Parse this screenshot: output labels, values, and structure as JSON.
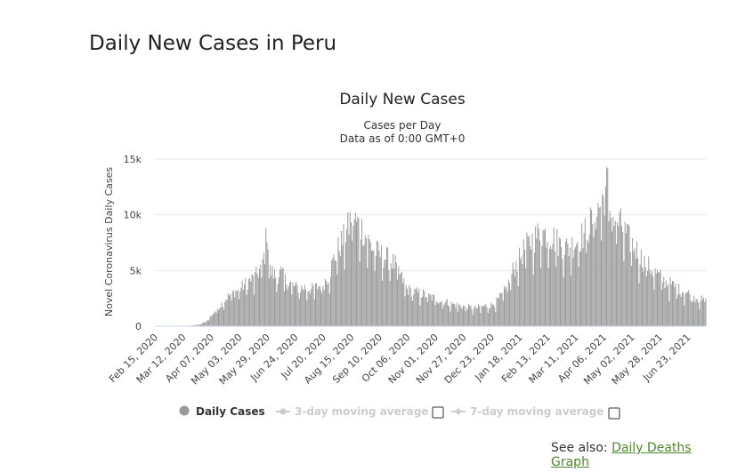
{
  "page": {
    "title": "Daily New Cases in Peru"
  },
  "see_also": {
    "prefix": "See also:",
    "link_label": "Daily Deaths Graph"
  },
  "legend": {
    "items": [
      {
        "label": "Daily Cases",
        "active": true,
        "color": "#999999"
      },
      {
        "label": "3-day moving average",
        "active": false,
        "color": "#cccccc"
      },
      {
        "label": "7-day moving average",
        "active": false,
        "color": "#cccccc"
      }
    ]
  },
  "chart_data": {
    "type": "bar",
    "title": "Daily New Cases",
    "subtitle_lines": [
      "Cases per Day",
      "Data as of 0:00 GMT+0"
    ],
    "ylabel": "Novel Coronavirus Daily Cases",
    "xlabel": "",
    "ylim": [
      0,
      15000
    ],
    "yticks": [
      {
        "value": 0,
        "label": "0"
      },
      {
        "value": 5000,
        "label": "5k"
      },
      {
        "value": 10000,
        "label": "10k"
      },
      {
        "value": 15000,
        "label": "15k"
      }
    ],
    "x_start": "2020-02-15",
    "x_end": "2021-07-10",
    "xticks": [
      "Feb 15, 2020",
      "Mar 12, 2020",
      "Apr 07, 2020",
      "May 03, 2020",
      "May 29, 2020",
      "Jun 24, 2020",
      "Jul 20, 2020",
      "Aug 15, 2020",
      "Sep 10, 2020",
      "Oct 06, 2020",
      "Nov 01, 2020",
      "Nov 27, 2020",
      "Dec 23, 2020",
      "Jan 18, 2021",
      "Feb 13, 2021",
      "Mar 11, 2021",
      "Apr 06, 2021",
      "May 02, 2021",
      "May 28, 2021",
      "Jun 23, 2021"
    ],
    "grid": true,
    "legend_position": "bottom",
    "series": [
      {
        "name": "Daily Cases",
        "color": "#999999",
        "points": [
          [
            "2020-02-15",
            0
          ],
          [
            "2020-03-06",
            0
          ],
          [
            "2020-03-12",
            20
          ],
          [
            "2020-03-20",
            60
          ],
          [
            "2020-03-28",
            150
          ],
          [
            "2020-04-02",
            400
          ],
          [
            "2020-04-07",
            900
          ],
          [
            "2020-04-12",
            1500
          ],
          [
            "2020-04-17",
            2000
          ],
          [
            "2020-04-22",
            2600
          ],
          [
            "2020-04-27",
            3000
          ],
          [
            "2020-05-03",
            3300
          ],
          [
            "2020-05-08",
            3700
          ],
          [
            "2020-05-13",
            4100
          ],
          [
            "2020-05-18",
            4400
          ],
          [
            "2020-05-23",
            5200
          ],
          [
            "2020-05-27",
            6500
          ],
          [
            "2020-05-29",
            8800
          ],
          [
            "2020-06-01",
            5000
          ],
          [
            "2020-06-06",
            4500
          ],
          [
            "2020-06-11",
            4800
          ],
          [
            "2020-06-16",
            4000
          ],
          [
            "2020-06-21",
            3800
          ],
          [
            "2020-06-24",
            3500
          ],
          [
            "2020-06-29",
            3400
          ],
          [
            "2020-07-04",
            3500
          ],
          [
            "2020-07-09",
            3300
          ],
          [
            "2020-07-14",
            3500
          ],
          [
            "2020-07-20",
            3800
          ],
          [
            "2020-07-25",
            4500
          ],
          [
            "2020-07-30",
            6000
          ],
          [
            "2020-08-04",
            7200
          ],
          [
            "2020-08-09",
            8000
          ],
          [
            "2020-08-13",
            9000
          ],
          [
            "2020-08-15",
            10000
          ],
          [
            "2020-08-20",
            9300
          ],
          [
            "2020-08-25",
            8800
          ],
          [
            "2020-08-30",
            7800
          ],
          [
            "2020-09-04",
            7000
          ],
          [
            "2020-09-10",
            6500
          ],
          [
            "2020-09-15",
            6200
          ],
          [
            "2020-09-20",
            6000
          ],
          [
            "2020-09-25",
            5500
          ],
          [
            "2020-09-30",
            4500
          ],
          [
            "2020-10-06",
            3300
          ],
          [
            "2020-10-11",
            3100
          ],
          [
            "2020-10-16",
            3000
          ],
          [
            "2020-10-21",
            2900
          ],
          [
            "2020-10-26",
            2700
          ],
          [
            "2020-11-01",
            2500
          ],
          [
            "2020-11-06",
            2300
          ],
          [
            "2020-11-11",
            2200
          ],
          [
            "2020-11-16",
            2000
          ],
          [
            "2020-11-21",
            1900
          ],
          [
            "2020-11-27",
            1800
          ],
          [
            "2020-12-02",
            1700
          ],
          [
            "2020-12-07",
            1600
          ],
          [
            "2020-12-12",
            1700
          ],
          [
            "2020-12-17",
            1800
          ],
          [
            "2020-12-23",
            1900
          ],
          [
            "2020-12-28",
            2200
          ],
          [
            "2021-01-02",
            2800
          ],
          [
            "2021-01-07",
            3500
          ],
          [
            "2021-01-12",
            5000
          ],
          [
            "2021-01-18",
            6000
          ],
          [
            "2021-01-23",
            7000
          ],
          [
            "2021-01-28",
            7500
          ],
          [
            "2021-02-02",
            8000
          ],
          [
            "2021-02-07",
            8500
          ],
          [
            "2021-02-13",
            8200
          ],
          [
            "2021-02-18",
            8000
          ],
          [
            "2021-02-23",
            7500
          ],
          [
            "2021-02-28",
            7200
          ],
          [
            "2021-03-05",
            7000
          ],
          [
            "2021-03-11",
            7600
          ],
          [
            "2021-03-16",
            8000
          ],
          [
            "2021-03-21",
            8500
          ],
          [
            "2021-03-26",
            9500
          ],
          [
            "2021-04-01",
            10500
          ],
          [
            "2021-04-06",
            11500
          ],
          [
            "2021-04-10",
            13000
          ],
          [
            "2021-04-13",
            9800
          ],
          [
            "2021-04-18",
            9500
          ],
          [
            "2021-04-23",
            9000
          ],
          [
            "2021-04-28",
            8000
          ],
          [
            "2021-05-02",
            7500
          ],
          [
            "2021-05-07",
            6800
          ],
          [
            "2021-05-12",
            6000
          ],
          [
            "2021-05-17",
            5500
          ],
          [
            "2021-05-22",
            5000
          ],
          [
            "2021-05-28",
            4500
          ],
          [
            "2021-06-02",
            4000
          ],
          [
            "2021-06-07",
            3800
          ],
          [
            "2021-06-12",
            3500
          ],
          [
            "2021-06-17",
            3200
          ],
          [
            "2021-06-23",
            3000
          ],
          [
            "2021-06-28",
            2700
          ],
          [
            "2021-07-03",
            2500
          ],
          [
            "2021-07-10",
            2200
          ]
        ]
      }
    ]
  }
}
